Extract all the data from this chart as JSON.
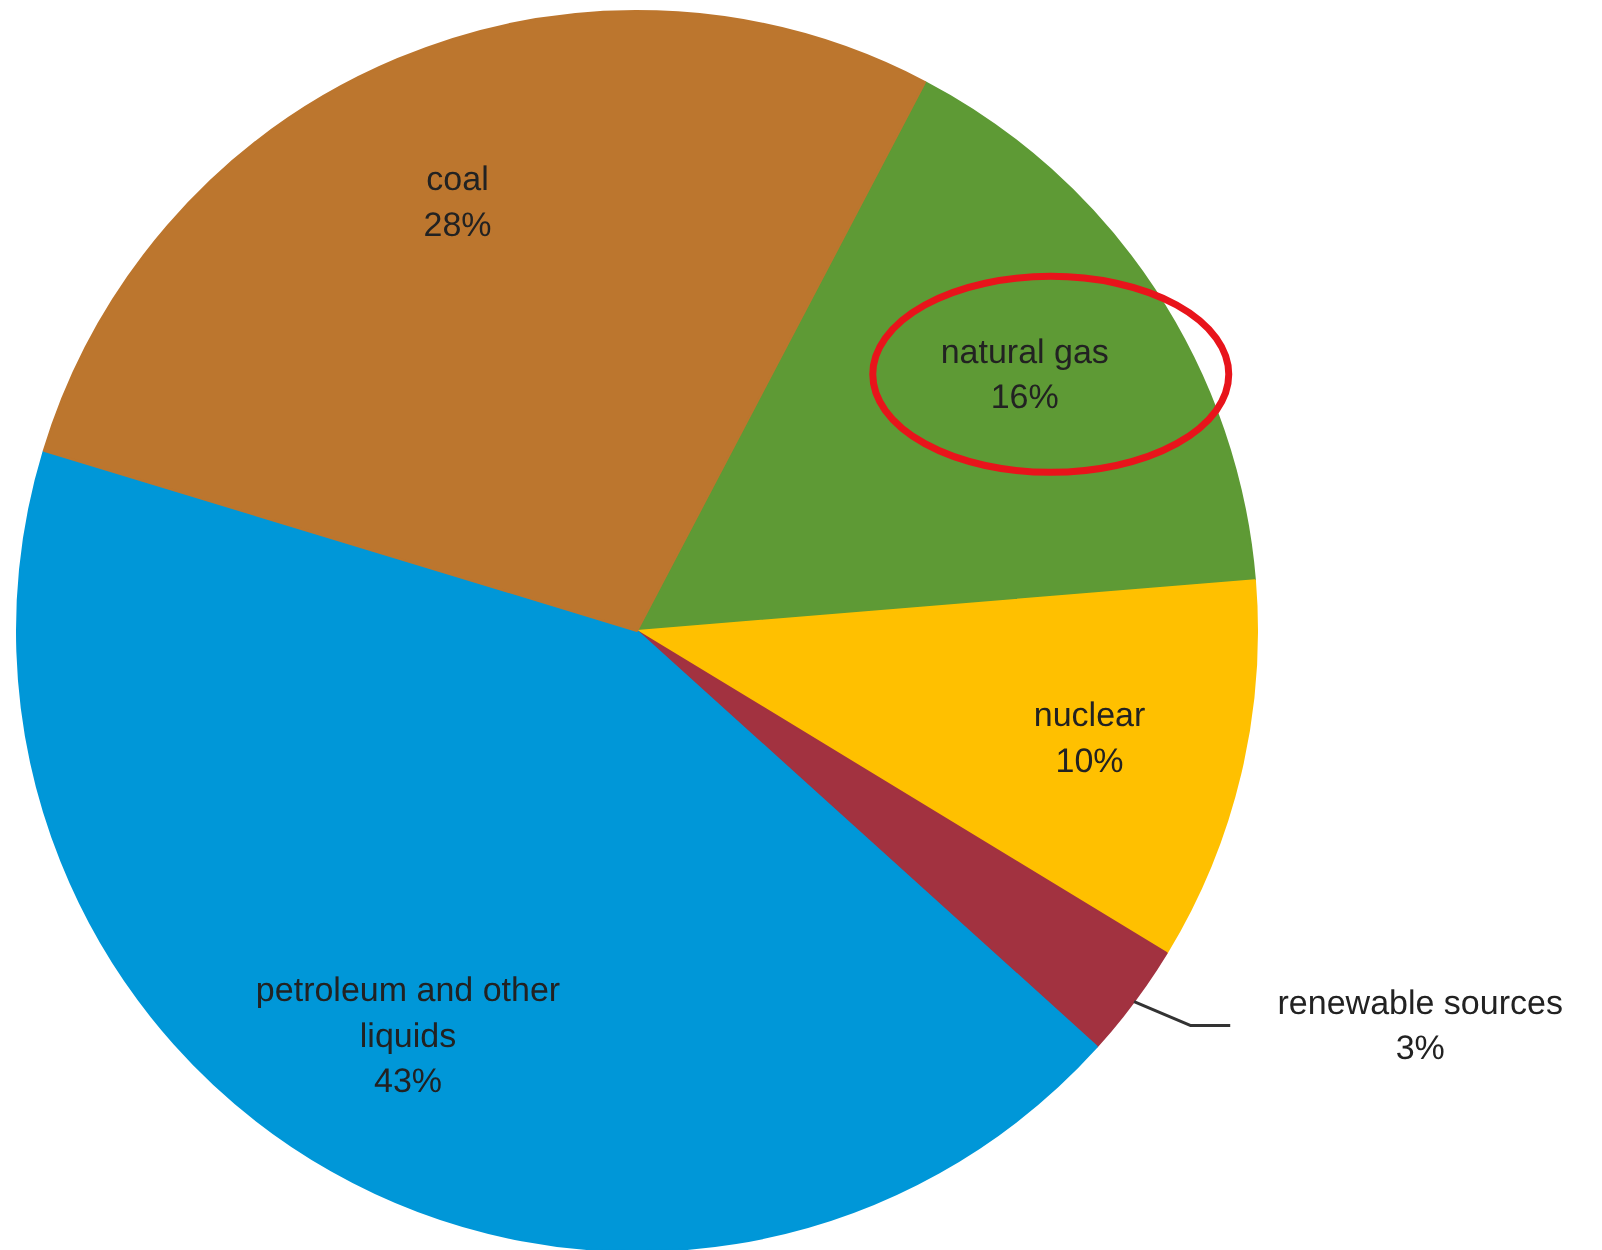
{
  "chart_data": {
    "type": "pie",
    "categories": [
      "natural gas",
      "nuclear",
      "renewable sources",
      "petroleum and other liquids",
      "coal"
    ],
    "values": [
      16,
      10,
      3,
      43,
      28
    ],
    "value_labels": [
      "16%",
      "10%",
      "3%",
      "43%",
      "28%"
    ],
    "colors": [
      "#5e9a35",
      "#ffc000",
      "#a23240",
      "#0097d8",
      "#bc762e"
    ]
  }
}
